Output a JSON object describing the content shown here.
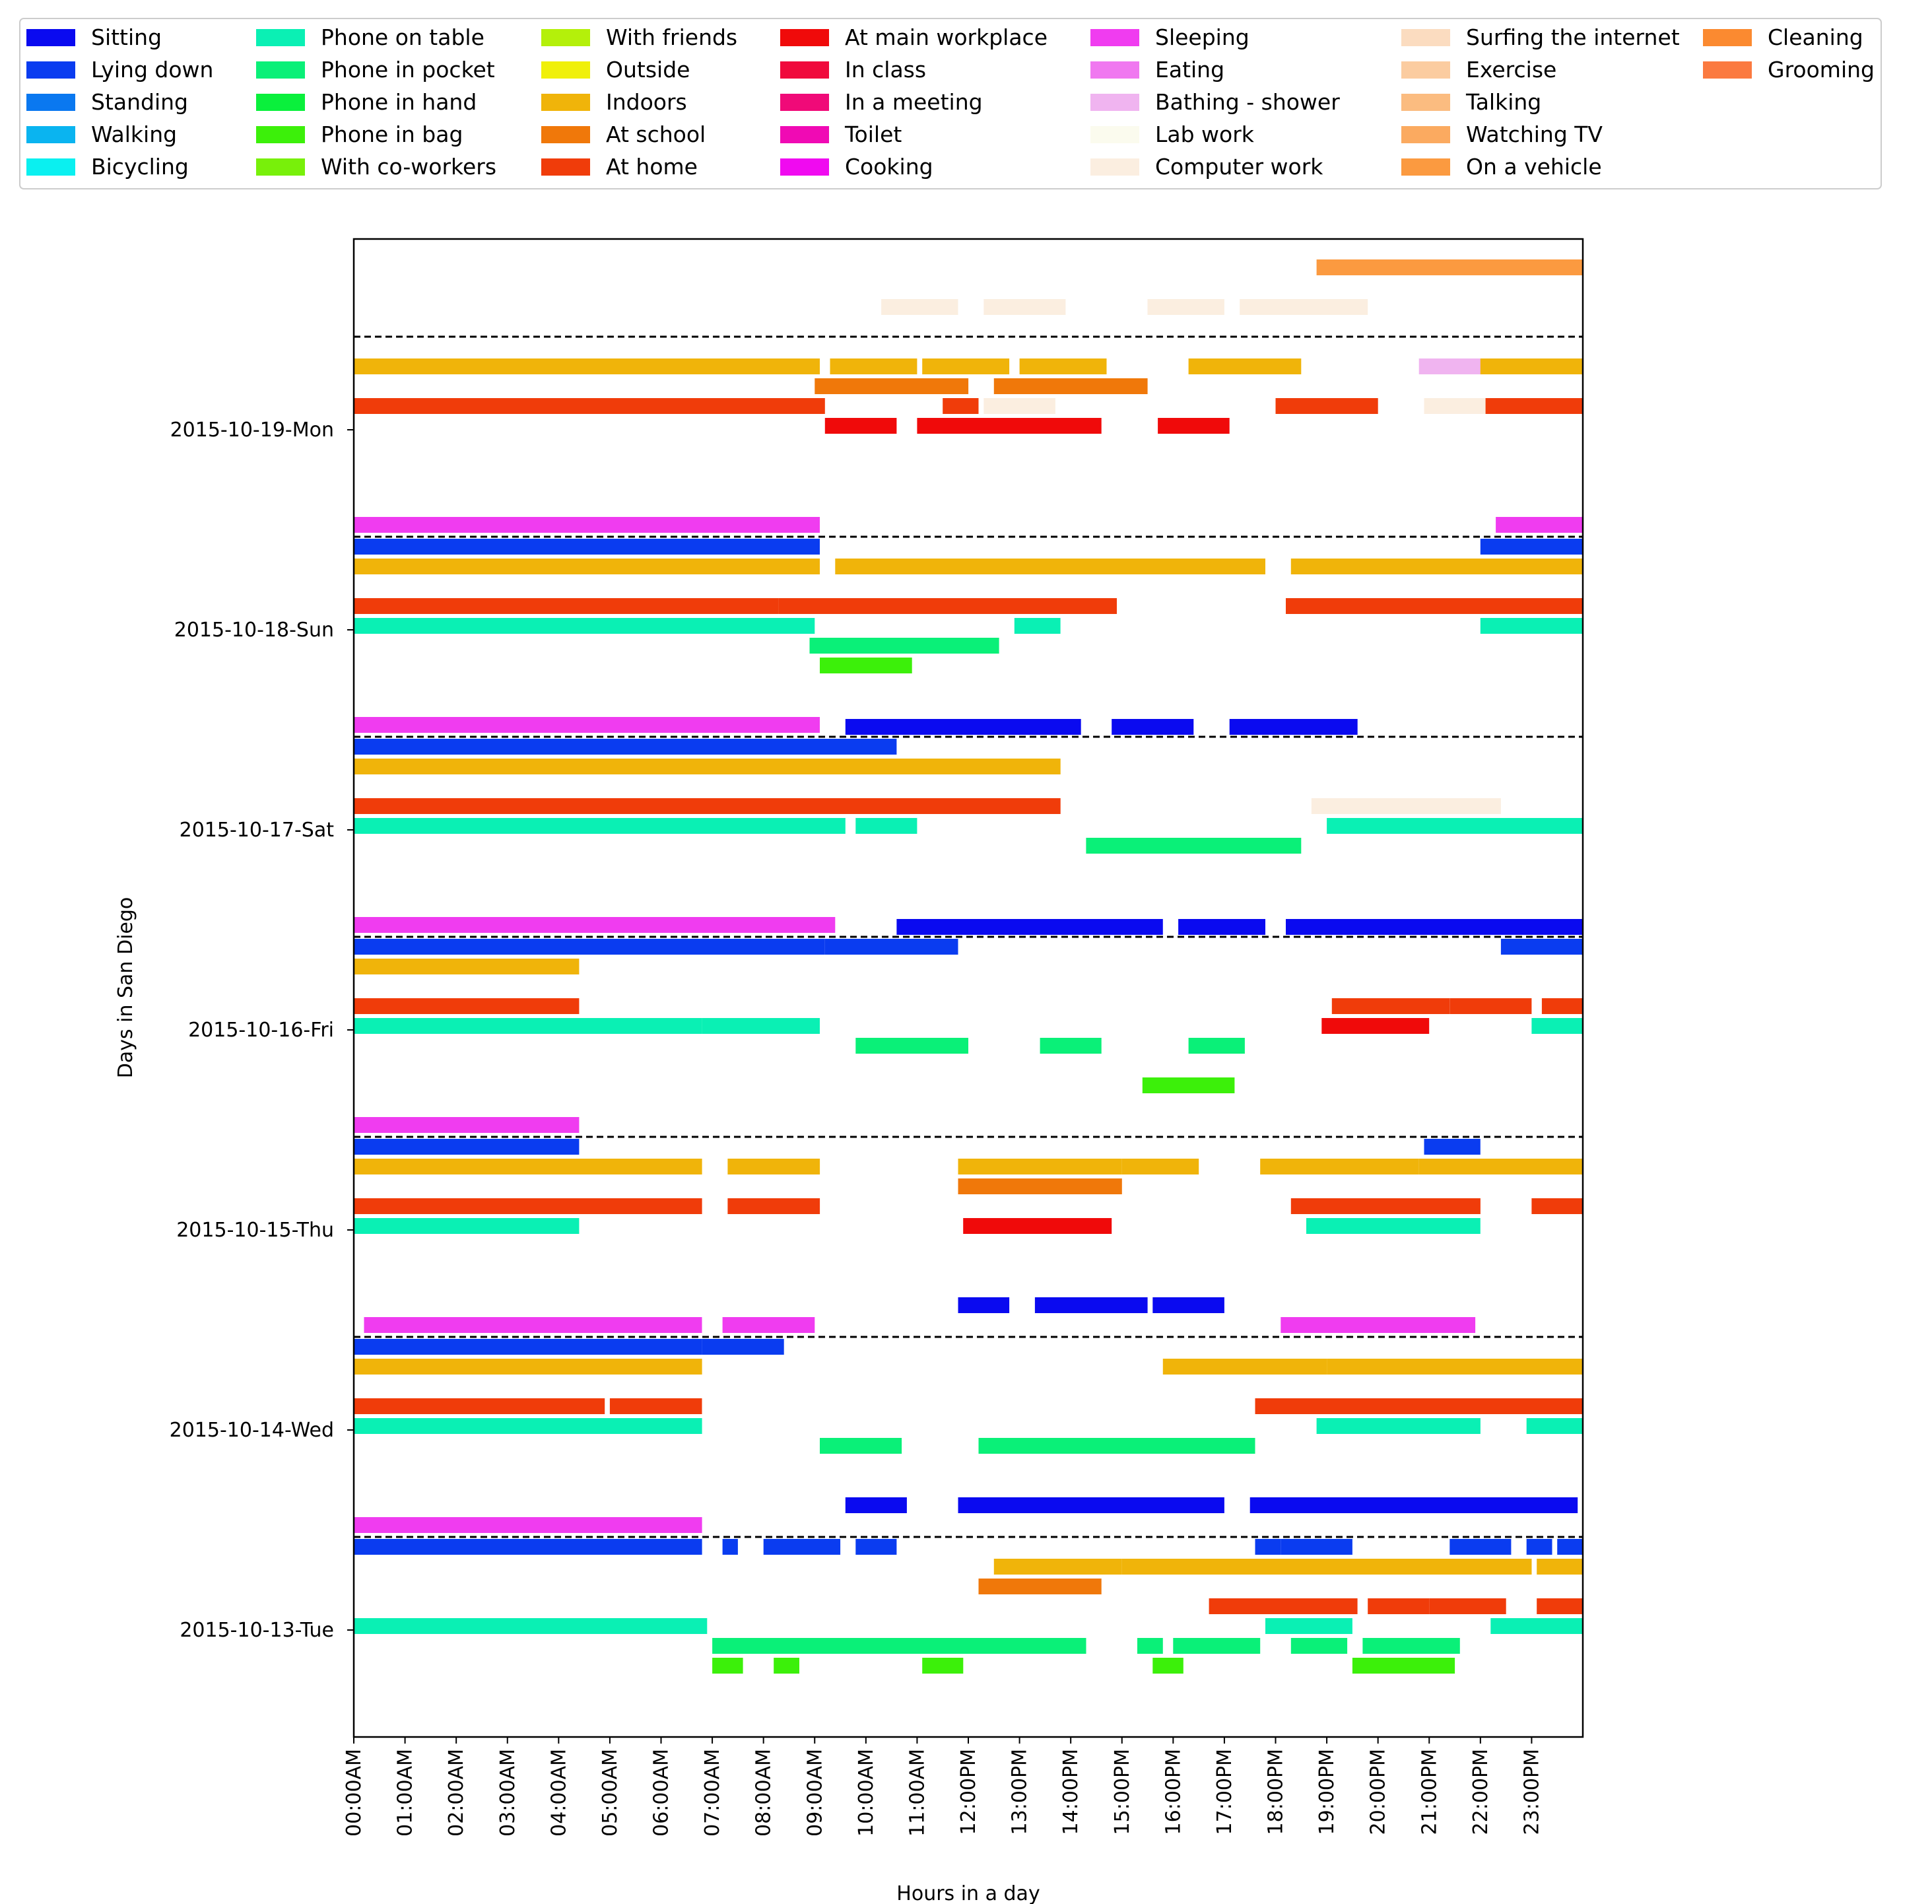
{
  "chart_data": {
    "type": "timeline",
    "xlabel": "Hours in a day",
    "ylabel": "Days in San Diego",
    "x_unit": "hour",
    "xlim": [
      0,
      24
    ],
    "x_ticks": [
      {
        "value": 0,
        "label": "00:00AM"
      },
      {
        "value": 1,
        "label": "01:00AM"
      },
      {
        "value": 2,
        "label": "02:00AM"
      },
      {
        "value": 3,
        "label": "03:00AM"
      },
      {
        "value": 4,
        "label": "04:00AM"
      },
      {
        "value": 5,
        "label": "05:00AM"
      },
      {
        "value": 6,
        "label": "06:00AM"
      },
      {
        "value": 7,
        "label": "07:00AM"
      },
      {
        "value": 8,
        "label": "08:00AM"
      },
      {
        "value": 9,
        "label": "09:00AM"
      },
      {
        "value": 10,
        "label": "10:00AM"
      },
      {
        "value": 11,
        "label": "11:00AM"
      },
      {
        "value": 12,
        "label": "12:00PM"
      },
      {
        "value": 13,
        "label": "13:00PM"
      },
      {
        "value": 14,
        "label": "14:00PM"
      },
      {
        "value": 15,
        "label": "15:00PM"
      },
      {
        "value": 16,
        "label": "16:00PM"
      },
      {
        "value": 17,
        "label": "17:00PM"
      },
      {
        "value": 18,
        "label": "18:00PM"
      },
      {
        "value": 19,
        "label": "19:00PM"
      },
      {
        "value": 20,
        "label": "20:00PM"
      },
      {
        "value": 21,
        "label": "21:00PM"
      },
      {
        "value": 22,
        "label": "22:00PM"
      },
      {
        "value": 23,
        "label": "23:00PM"
      }
    ],
    "days": [
      "2015-10-13-Tue",
      "2015-10-14-Wed",
      "2015-10-15-Thu",
      "2015-10-16-Fri",
      "2015-10-17-Sat",
      "2015-10-18-Sun",
      "2015-10-19-Mon"
    ],
    "legend_placement": "top",
    "legend": [
      {
        "label": "Sitting",
        "color": "#0a0af0"
      },
      {
        "label": "Lying down",
        "color": "#0a3cf0"
      },
      {
        "label": "Standing",
        "color": "#0a78f0"
      },
      {
        "label": "Walking",
        "color": "#0ab4f0"
      },
      {
        "label": "Bicycling",
        "color": "#0af0f0"
      },
      {
        "label": "Phone on table",
        "color": "#0af0b4"
      },
      {
        "label": "Phone in pocket",
        "color": "#0af078"
      },
      {
        "label": "Phone in hand",
        "color": "#0af03c"
      },
      {
        "label": "Phone in bag",
        "color": "#3cf00a"
      },
      {
        "label": "With co-workers",
        "color": "#78f00a"
      },
      {
        "label": "With friends",
        "color": "#b4f00a"
      },
      {
        "label": "Outside",
        "color": "#f0f00a"
      },
      {
        "label": "Indoors",
        "color": "#f0b40a"
      },
      {
        "label": "At school",
        "color": "#f0780a"
      },
      {
        "label": "At home",
        "color": "#f03c0a"
      },
      {
        "label": "At main workplace",
        "color": "#f00a0a"
      },
      {
        "label": "In class",
        "color": "#f00a3c"
      },
      {
        "label": "In a meeting",
        "color": "#f00a78"
      },
      {
        "label": "Toilet",
        "color": "#f00ab4"
      },
      {
        "label": "Cooking",
        "color": "#f00af0"
      },
      {
        "label": "Sleeping",
        "color": "#f03cf0"
      },
      {
        "label": "Eating",
        "color": "#f078f0"
      },
      {
        "label": "Bathing - shower",
        "color": "#f0b4f0"
      },
      {
        "label": "Lab work",
        "color": "#fbfbee"
      },
      {
        "label": "Computer work",
        "color": "#fbeee0"
      },
      {
        "label": "Surfing the internet",
        "color": "#fbdcc0"
      },
      {
        "label": "Exercise",
        "color": "#fbcca0"
      },
      {
        "label": "Talking",
        "color": "#fbbc80"
      },
      {
        "label": "Watching TV",
        "color": "#fbaa60"
      },
      {
        "label": "On a vehicle",
        "color": "#fb9a40"
      },
      {
        "label": "Cleaning",
        "color": "#fb8a30"
      },
      {
        "label": "Grooming",
        "color": "#fb7a40"
      }
    ],
    "rows_per_day": 10,
    "series": [
      {
        "day": 0,
        "row": 9,
        "label": "Lying down",
        "segments": [
          [
            0,
            6.8
          ],
          [
            7.2,
            7.5
          ],
          [
            8.0,
            9.5
          ],
          [
            9.8,
            10.6
          ],
          [
            17.6,
            18.1
          ],
          [
            18.1,
            19.5
          ],
          [
            21.4,
            22.6
          ],
          [
            22.9,
            23.4
          ],
          [
            23.5,
            24.0
          ]
        ]
      },
      {
        "day": 0,
        "row": 8,
        "label": "Indoors",
        "segments": [
          [
            12.5,
            15.0
          ],
          [
            15.0,
            23.0
          ],
          [
            23.1,
            24.0
          ]
        ]
      },
      {
        "day": 0,
        "row": 7,
        "label": "At school",
        "segments": [
          [
            12.2,
            14.6
          ]
        ]
      },
      {
        "day": 0,
        "row": 6,
        "label": "At home",
        "segments": [
          [
            16.7,
            19.6
          ],
          [
            19.8,
            21.0
          ],
          [
            21.0,
            22.5
          ],
          [
            23.1,
            24.0
          ]
        ]
      },
      {
        "day": 0,
        "row": 5,
        "label": "Phone on table",
        "segments": [
          [
            0,
            6.9
          ],
          [
            17.8,
            19.5
          ],
          [
            22.2,
            24.0
          ]
        ]
      },
      {
        "day": 0,
        "row": 4,
        "label": "Phone in pocket",
        "segments": [
          [
            7.0,
            14.3
          ],
          [
            15.3,
            15.8
          ],
          [
            16.0,
            17.7
          ],
          [
            18.3,
            19.4
          ],
          [
            19.7,
            21.6
          ]
        ]
      },
      {
        "day": 0,
        "row": 3,
        "label": "Phone in bag",
        "segments": [
          [
            7.0,
            7.6
          ],
          [
            8.2,
            8.7
          ],
          [
            11.1,
            11.9
          ],
          [
            15.6,
            16.2
          ],
          [
            19.5,
            20.5
          ],
          [
            20.5,
            21.5
          ]
        ]
      },
      {
        "day": 1,
        "row": 9,
        "label": "Lying down",
        "segments": [
          [
            0,
            6.8
          ],
          [
            6.8,
            8.4
          ]
        ]
      },
      {
        "day": 1,
        "row": 8,
        "label": "Indoors",
        "segments": [
          [
            0,
            6.8
          ],
          [
            15.8,
            19.0
          ],
          [
            19.0,
            24.0
          ]
        ]
      },
      {
        "day": 1,
        "row": 6,
        "label": "At home",
        "segments": [
          [
            0,
            4.9
          ],
          [
            5.0,
            6.8
          ],
          [
            17.6,
            24.0
          ]
        ]
      },
      {
        "day": 1,
        "row": 5,
        "label": "Phone on table",
        "segments": [
          [
            0,
            6.8
          ],
          [
            18.8,
            22.0
          ],
          [
            22.9,
            24.0
          ]
        ]
      },
      {
        "day": 1,
        "row": 4,
        "label": "Phone in pocket",
        "segments": [
          [
            9.1,
            10.7
          ],
          [
            12.2,
            17.6
          ]
        ]
      },
      {
        "day": 1,
        "row": 0,
        "label": "Sleeping",
        "segments": [
          [
            0,
            6.8
          ]
        ]
      },
      {
        "day": 1,
        "row": 1,
        "label": "Sitting",
        "segments": [
          [
            9.6,
            10.8
          ],
          [
            11.8,
            17.0
          ],
          [
            17.5,
            23.9
          ]
        ]
      },
      {
        "day": 2,
        "row": 9,
        "label": "Lying down",
        "segments": [
          [
            0,
            4.4
          ],
          [
            20.9,
            22.0
          ]
        ]
      },
      {
        "day": 2,
        "row": 8,
        "label": "Indoors",
        "segments": [
          [
            0,
            6.8
          ],
          [
            7.3,
            9.1
          ],
          [
            11.8,
            15.0
          ],
          [
            15.0,
            16.5
          ],
          [
            17.7,
            20.8
          ],
          [
            20.8,
            24.0
          ]
        ]
      },
      {
        "day": 2,
        "row": 7,
        "label": "At school",
        "segments": [
          [
            11.8,
            15.0
          ]
        ]
      },
      {
        "day": 2,
        "row": 6,
        "label": "At home",
        "segments": [
          [
            0,
            6.8
          ],
          [
            7.3,
            9.1
          ],
          [
            18.3,
            22.0
          ],
          [
            23.0,
            24.0
          ]
        ]
      },
      {
        "day": 2,
        "row": 5,
        "label": "Phone on table",
        "segments": [
          [
            0,
            4.4
          ],
          [
            18.6,
            22.0
          ]
        ]
      },
      {
        "day": 2,
        "row": 5,
        "label": "At main workplace",
        "segments": [
          [
            11.9,
            14.8
          ]
        ]
      },
      {
        "day": 2,
        "row": 0,
        "label": "Sleeping",
        "segments": [
          [
            0.2,
            6.8
          ],
          [
            7.2,
            9.0
          ],
          [
            18.1,
            21.9
          ]
        ]
      },
      {
        "day": 2,
        "row": 1,
        "label": "Sitting",
        "segments": [
          [
            11.8,
            12.8
          ],
          [
            13.3,
            15.5
          ],
          [
            15.6,
            17.0
          ]
        ]
      },
      {
        "day": 3,
        "row": 9,
        "label": "Lying down",
        "segments": [
          [
            0,
            9.2
          ],
          [
            9.2,
            11.8
          ],
          [
            22.4,
            24.0
          ]
        ]
      },
      {
        "day": 3,
        "row": 8,
        "label": "Indoors",
        "segments": [
          [
            0,
            4.4
          ]
        ]
      },
      {
        "day": 3,
        "row": 6,
        "label": "At home",
        "segments": [
          [
            0,
            4.4
          ],
          [
            19.1,
            21.4
          ],
          [
            21.4,
            23.0
          ],
          [
            23.2,
            24.0
          ]
        ]
      },
      {
        "day": 3,
        "row": 5,
        "label": "Phone on table",
        "segments": [
          [
            0,
            6.8
          ],
          [
            6.8,
            9.1
          ],
          [
            23.0,
            24.0
          ]
        ]
      },
      {
        "day": 3,
        "row": 5,
        "label": "At main workplace",
        "segments": [
          [
            18.9,
            21.0
          ]
        ]
      },
      {
        "day": 3,
        "row": 4,
        "label": "Phone in pocket",
        "segments": [
          [
            9.8,
            12.0
          ],
          [
            13.4,
            14.6
          ],
          [
            16.3,
            17.4
          ]
        ]
      },
      {
        "day": 3,
        "row": 2,
        "label": "Phone in bag",
        "segments": [
          [
            15.4,
            17.2
          ]
        ]
      },
      {
        "day": 3,
        "row": 0,
        "label": "Sleeping",
        "segments": [
          [
            0,
            4.4
          ]
        ]
      },
      {
        "day": 3,
        "row": 10,
        "label": "Sitting",
        "segments": [
          [
            10.6,
            15.8
          ],
          [
            16.1,
            17.8
          ],
          [
            18.2,
            24.0
          ]
        ]
      },
      {
        "day": 4,
        "row": 9,
        "label": "Lying down",
        "segments": [
          [
            0,
            10.6
          ]
        ]
      },
      {
        "day": 4,
        "row": 8,
        "label": "Indoors",
        "segments": [
          [
            0,
            13.8
          ]
        ]
      },
      {
        "day": 4,
        "row": 6,
        "label": "At home",
        "segments": [
          [
            0,
            13.8
          ]
        ]
      },
      {
        "day": 4,
        "row": 6,
        "label": "Computer work",
        "segments": [
          [
            18.7,
            22.4
          ]
        ]
      },
      {
        "day": 4,
        "row": 5,
        "label": "Phone on table",
        "segments": [
          [
            0,
            9.6
          ],
          [
            9.8,
            11.0
          ],
          [
            19.0,
            24.0
          ]
        ]
      },
      {
        "day": 4,
        "row": 4,
        "label": "Phone in pocket",
        "segments": [
          [
            14.3,
            18.5
          ]
        ]
      },
      {
        "day": 4,
        "row": 0,
        "label": "Sleeping",
        "segments": [
          [
            0,
            9.4
          ]
        ]
      },
      {
        "day": 4,
        "row": 10,
        "label": "Sitting",
        "segments": [
          [
            9.6,
            14.2
          ],
          [
            14.8,
            16.4
          ],
          [
            17.1,
            19.6
          ]
        ]
      },
      {
        "day": 5,
        "row": 9,
        "label": "Lying down",
        "segments": [
          [
            0,
            9.1
          ],
          [
            22.0,
            24.0
          ]
        ]
      },
      {
        "day": 5,
        "row": 8,
        "label": "Indoors",
        "segments": [
          [
            0,
            9.1
          ],
          [
            9.4,
            17.8
          ],
          [
            18.3,
            24.0
          ]
        ]
      },
      {
        "day": 5,
        "row": 6,
        "label": "At home",
        "segments": [
          [
            0,
            8.3
          ],
          [
            8.3,
            14.9
          ],
          [
            18.2,
            24.0
          ]
        ]
      },
      {
        "day": 5,
        "row": 5,
        "label": "Phone on table",
        "segments": [
          [
            0,
            9.0
          ],
          [
            12.9,
            13.8
          ],
          [
            22.0,
            24.0
          ]
        ]
      },
      {
        "day": 5,
        "row": 4,
        "label": "Phone in pocket",
        "segments": [
          [
            8.9,
            12.6
          ]
        ]
      },
      {
        "day": 5,
        "row": 3,
        "label": "Phone in bag",
        "segments": [
          [
            9.1,
            10.9
          ]
        ]
      },
      {
        "day": 5,
        "row": 0,
        "label": "Sleeping",
        "segments": [
          [
            0,
            9.1
          ]
        ]
      },
      {
        "day": 6,
        "row": 8,
        "label": "Indoors",
        "segments": [
          [
            0,
            9.1
          ],
          [
            9.3,
            11.0
          ],
          [
            11.1,
            12.8
          ],
          [
            13.0,
            14.7
          ],
          [
            16.3,
            18.5
          ],
          [
            21.9,
            24.0
          ]
        ]
      },
      {
        "day": 6,
        "row": 8,
        "label": "Bathing - shower",
        "segments": [
          [
            20.8,
            22.0
          ]
        ]
      },
      {
        "day": 6,
        "row": 7,
        "label": "At school",
        "segments": [
          [
            9.0,
            12.0
          ],
          [
            12.5,
            15.5
          ]
        ]
      },
      {
        "day": 6,
        "row": 6,
        "label": "At home",
        "segments": [
          [
            0,
            9.2
          ],
          [
            11.5,
            12.2
          ],
          [
            18.0,
            20.0
          ],
          [
            22.0,
            24.0
          ]
        ]
      },
      {
        "day": 6,
        "row": 6,
        "label": "Computer work",
        "segments": [
          [
            12.3,
            13.7
          ],
          [
            20.9,
            22.1
          ]
        ]
      },
      {
        "day": 6,
        "row": 5,
        "label": "At main workplace",
        "segments": [
          [
            9.2,
            10.6
          ],
          [
            11.0,
            14.6
          ],
          [
            15.7,
            17.1
          ]
        ]
      },
      {
        "day": 6,
        "row": 0,
        "label": "Sleeping",
        "segments": [
          [
            0,
            9.1
          ],
          [
            22.3,
            24.0
          ]
        ]
      },
      {
        "day": 6,
        "row": 11,
        "label": "Computer work",
        "segments": [
          [
            10.3,
            11.8
          ],
          [
            12.3,
            13.9
          ],
          [
            15.5,
            17.0
          ],
          [
            17.3,
            19.8
          ]
        ]
      },
      {
        "day": 6,
        "row": 13,
        "label": "On a vehicle",
        "segments": [
          [
            18.8,
            24.0
          ]
        ]
      }
    ]
  }
}
